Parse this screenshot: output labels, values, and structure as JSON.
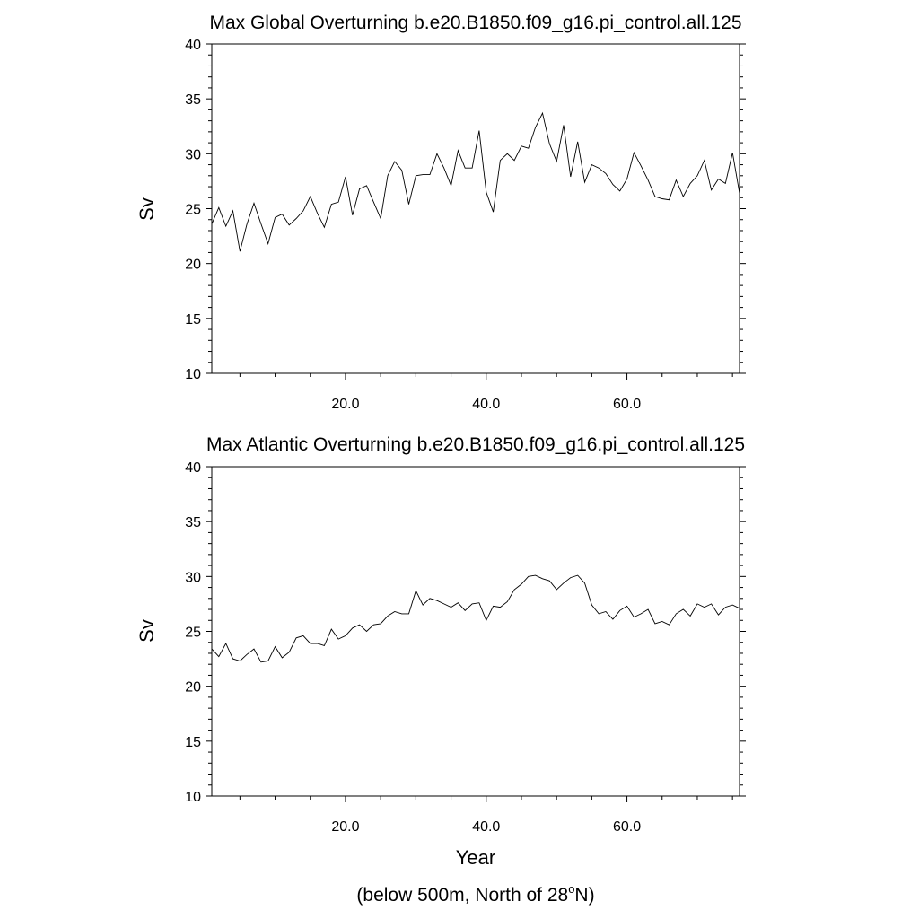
{
  "page": {
    "xlabel": "Year",
    "footer_main": "(below 500m, North of 28",
    "footer_sup": "o",
    "footer_tail": "N)"
  },
  "chart_data": [
    {
      "type": "line",
      "title": "Max Global Overturning b.e20.B1850.f09_g16.pi_control.all.125",
      "xlabel": "",
      "ylabel": "Sv",
      "xlim": [
        1,
        76
      ],
      "ylim": [
        10,
        40
      ],
      "xticks": [
        20,
        40,
        60
      ],
      "xtick_labels": [
        "20.0",
        "40.0",
        "60.0"
      ],
      "yticks": [
        10,
        15,
        20,
        25,
        30,
        35,
        40
      ],
      "ytick_labels": [
        "10",
        "15",
        "20",
        "25",
        "30",
        "35",
        "40"
      ],
      "grid": false,
      "line_color": "#000000",
      "series": [
        {
          "name": "Max Global Overturning",
          "x": [
            1,
            2,
            3,
            4,
            5,
            6,
            7,
            8,
            9,
            10,
            11,
            12,
            13,
            14,
            15,
            16,
            17,
            18,
            19,
            20,
            21,
            22,
            23,
            24,
            25,
            26,
            27,
            28,
            29,
            30,
            31,
            32,
            33,
            34,
            35,
            36,
            37,
            38,
            39,
            40,
            41,
            42,
            43,
            44,
            45,
            46,
            47,
            48,
            49,
            50,
            51,
            52,
            53,
            54,
            55,
            56,
            57,
            58,
            59,
            60,
            61,
            62,
            63,
            64,
            65,
            66,
            67,
            68,
            69,
            70,
            71,
            72,
            73,
            74,
            75,
            76
          ],
          "values": [
            23.6,
            25.1,
            23.4,
            24.8,
            21.1,
            23.6,
            25.5,
            23.6,
            21.8,
            24.2,
            24.5,
            23.5,
            24.1,
            24.8,
            26.1,
            24.6,
            23.3,
            25.4,
            25.6,
            27.9,
            24.4,
            26.8,
            27.1,
            25.6,
            24.1,
            28.0,
            29.3,
            28.5,
            25.4,
            28.0,
            28.1,
            28.1,
            30.0,
            28.7,
            27.1,
            30.3,
            28.7,
            28.7,
            32.1,
            26.5,
            24.7,
            29.4,
            30.0,
            29.4,
            30.7,
            30.5,
            32.4,
            33.7,
            30.9,
            29.3,
            32.6,
            27.9,
            31.1,
            27.4,
            29.0,
            28.7,
            28.2,
            27.2,
            26.6,
            27.7,
            30.1,
            28.9,
            27.6,
            26.1,
            25.9,
            25.8,
            27.6,
            26.1,
            27.3,
            28.0,
            29.4,
            26.7,
            27.7,
            27.3,
            30.1,
            26.4
          ]
        }
      ]
    },
    {
      "type": "line",
      "title": "Max Atlantic Overturning b.e20.B1850.f09_g16.pi_control.all.125",
      "xlabel": "Year",
      "ylabel": "Sv",
      "xlim": [
        1,
        76
      ],
      "ylim": [
        10,
        40
      ],
      "xticks": [
        20,
        40,
        60
      ],
      "xtick_labels": [
        "20.0",
        "40.0",
        "60.0"
      ],
      "yticks": [
        10,
        15,
        20,
        25,
        30,
        35,
        40
      ],
      "ytick_labels": [
        "10",
        "15",
        "20",
        "25",
        "30",
        "35",
        "40"
      ],
      "grid": false,
      "line_color": "#000000",
      "series": [
        {
          "name": "Max Atlantic Overturning",
          "x": [
            1,
            2,
            3,
            4,
            5,
            6,
            7,
            8,
            9,
            10,
            11,
            12,
            13,
            14,
            15,
            16,
            17,
            18,
            19,
            20,
            21,
            22,
            23,
            24,
            25,
            26,
            27,
            28,
            29,
            30,
            31,
            32,
            33,
            34,
            35,
            36,
            37,
            38,
            39,
            40,
            41,
            42,
            43,
            44,
            45,
            46,
            47,
            48,
            49,
            50,
            51,
            52,
            53,
            54,
            55,
            56,
            57,
            58,
            59,
            60,
            61,
            62,
            63,
            64,
            65,
            66,
            67,
            68,
            69,
            70,
            71,
            72,
            73,
            74,
            75,
            76
          ],
          "values": [
            23.4,
            22.7,
            23.9,
            22.5,
            22.3,
            22.9,
            23.4,
            22.2,
            22.3,
            23.6,
            22.6,
            23.1,
            24.4,
            24.6,
            23.9,
            23.9,
            23.7,
            25.2,
            24.3,
            24.6,
            25.3,
            25.6,
            25.0,
            25.6,
            25.7,
            26.4,
            26.8,
            26.6,
            26.6,
            28.7,
            27.4,
            28.0,
            27.8,
            27.5,
            27.2,
            27.6,
            26.9,
            27.5,
            27.6,
            26.0,
            27.3,
            27.2,
            27.7,
            28.8,
            29.3,
            30.0,
            30.1,
            29.8,
            29.6,
            28.8,
            29.4,
            29.9,
            30.1,
            29.4,
            27.4,
            26.6,
            26.8,
            26.1,
            26.9,
            27.3,
            26.3,
            26.6,
            27.0,
            25.7,
            25.9,
            25.6,
            26.6,
            27.0,
            26.4,
            27.5,
            27.2,
            27.5,
            26.5,
            27.2,
            27.4,
            27.1
          ]
        }
      ]
    }
  ]
}
